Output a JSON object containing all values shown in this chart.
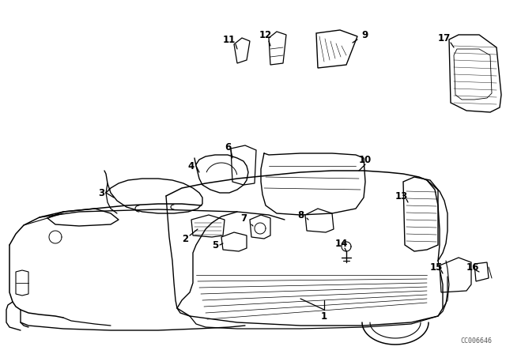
{
  "background_color": "#ffffff",
  "diagram_color": "#000000",
  "watermark": "CC006646",
  "figsize": [
    6.4,
    4.48
  ],
  "dpi": 100,
  "xlim": [
    0,
    640
  ],
  "ylim": [
    0,
    448
  ]
}
